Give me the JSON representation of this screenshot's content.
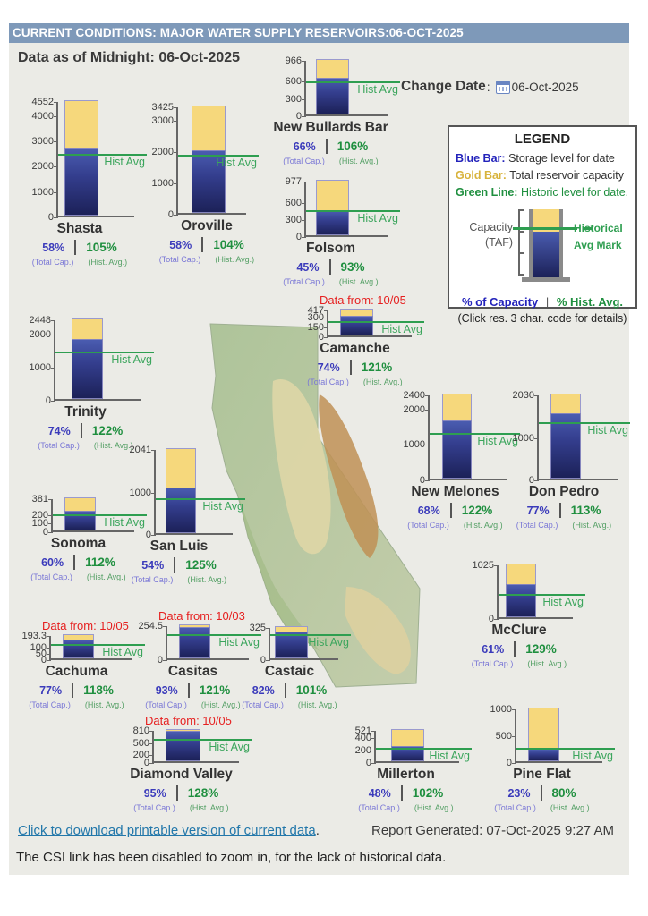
{
  "header": {
    "title": "CURRENT CONDITIONS: MAJOR WATER SUPPLY RESERVOIRS:06-OCT-2025"
  },
  "subtitle": "Data as of Midnight: 06-Oct-2025",
  "change_date": {
    "label": "Change Date",
    "colon": ":",
    "value": "06-Oct-2025"
  },
  "legend": {
    "title": "LEGEND",
    "items": [
      {
        "term": "Blue Bar:",
        "desc": "Storage level for date"
      },
      {
        "term": "Gold Bar:",
        "desc": "Total reservoir capacity"
      },
      {
        "term": "Green Line:",
        "desc": "Historic level for date."
      }
    ],
    "capacity_label_1": "Capacity",
    "capacity_label_2": "(TAF)",
    "hist_mark_1": "Historical",
    "hist_mark_2": "Avg Mark",
    "pct_capacity": "% of Capacity",
    "pct_sep": "|",
    "pct_hist": "% Hist. Avg.",
    "click_note": "(Click res. 3 char. code for details)"
  },
  "chart_data": {
    "type": "bar",
    "unit": "TAF",
    "hist_line_label": "Hist Avg",
    "caption_total": "(Total Cap.)",
    "caption_hist": "(Hist. Avg.)",
    "colors": {
      "storage_bar": "#2e3a8c",
      "capacity_bar": "#f6d87c",
      "hist_line": "#2e9e50",
      "data_note": "#e62020"
    },
    "reservoirs": [
      {
        "name": "Shasta",
        "ticks": [
          "4552",
          "4000",
          "3000",
          "2000",
          "1000",
          "0"
        ],
        "capacity_taf": 4552,
        "pct_of_capacity": 58,
        "pct_hist_avg": 105,
        "storage_taf": 2640,
        "hist_avg_taf": 2514
      },
      {
        "name": "Oroville",
        "ticks": [
          "3425",
          "3000",
          "2000",
          "1000",
          "0"
        ],
        "capacity_taf": 3425,
        "pct_of_capacity": 58,
        "pct_hist_avg": 104,
        "storage_taf": 1987,
        "hist_avg_taf": 1910
      },
      {
        "name": "New Bullards Bar",
        "ticks": [
          "966",
          "600",
          "300",
          "0"
        ],
        "capacity_taf": 966,
        "pct_of_capacity": 66,
        "pct_hist_avg": 106,
        "storage_taf": 638,
        "hist_avg_taf": 602
      },
      {
        "name": "Folsom",
        "ticks": [
          "977",
          "600",
          "300",
          "0"
        ],
        "capacity_taf": 977,
        "pct_of_capacity": 45,
        "pct_hist_avg": 93,
        "storage_taf": 440,
        "hist_avg_taf": 473
      },
      {
        "name": "Camanche",
        "ticks": [
          "417",
          "300",
          "150",
          "0"
        ],
        "capacity_taf": 417,
        "pct_of_capacity": 74,
        "pct_hist_avg": 121,
        "storage_taf": 309,
        "hist_avg_taf": 255,
        "data_note": "Data from: 10/05"
      },
      {
        "name": "Trinity",
        "ticks": [
          "2448",
          "2000",
          "1000",
          "0"
        ],
        "capacity_taf": 2448,
        "pct_of_capacity": 74,
        "pct_hist_avg": 122,
        "storage_taf": 1812,
        "hist_avg_taf": 1485
      },
      {
        "name": "New Melones",
        "ticks": [
          "2400",
          "2000",
          "1000",
          "0"
        ],
        "capacity_taf": 2400,
        "pct_of_capacity": 68,
        "pct_hist_avg": 122,
        "storage_taf": 1632,
        "hist_avg_taf": 1338
      },
      {
        "name": "Don Pedro",
        "ticks": [
          "2030",
          "1000",
          "0"
        ],
        "capacity_taf": 2030,
        "pct_of_capacity": 77,
        "pct_hist_avg": 113,
        "storage_taf": 1563,
        "hist_avg_taf": 1383
      },
      {
        "name": "Sonoma",
        "ticks": [
          "381",
          "200",
          "100",
          "0"
        ],
        "capacity_taf": 381,
        "pct_of_capacity": 60,
        "pct_hist_avg": 112,
        "storage_taf": 229,
        "hist_avg_taf": 204
      },
      {
        "name": "San Luis",
        "ticks": [
          "2041",
          "1000",
          "0"
        ],
        "capacity_taf": 2041,
        "pct_of_capacity": 54,
        "pct_hist_avg": 125,
        "storage_taf": 1102,
        "hist_avg_taf": 882
      },
      {
        "name": "McClure",
        "ticks": [
          "1025",
          "0"
        ],
        "capacity_taf": 1025,
        "pct_of_capacity": 61,
        "pct_hist_avg": 129,
        "storage_taf": 625,
        "hist_avg_taf": 485
      },
      {
        "name": "Cachuma",
        "ticks": [
          "193.3",
          "100",
          "50",
          "0"
        ],
        "capacity_taf": 193.3,
        "pct_of_capacity": 77,
        "pct_hist_avg": 118,
        "storage_taf": 149,
        "hist_avg_taf": 126,
        "data_note": "Data from: 10/05"
      },
      {
        "name": "Casitas",
        "ticks": [
          "254.5",
          "0"
        ],
        "capacity_taf": 254.5,
        "pct_of_capacity": 93,
        "pct_hist_avg": 121,
        "storage_taf": 237,
        "hist_avg_taf": 196,
        "data_note": "Data from: 10/03"
      },
      {
        "name": "Castaic",
        "ticks": [
          "325",
          "0"
        ],
        "capacity_taf": 325,
        "pct_of_capacity": 82,
        "pct_hist_avg": 101,
        "storage_taf": 267,
        "hist_avg_taf": 264
      },
      {
        "name": "Diamond Valley",
        "ticks": [
          "810",
          "500",
          "200",
          "0"
        ],
        "capacity_taf": 810,
        "pct_of_capacity": 95,
        "pct_hist_avg": 128,
        "storage_taf": 770,
        "hist_avg_taf": 601,
        "data_note": "Data from: 10/05"
      },
      {
        "name": "Millerton",
        "ticks": [
          "521",
          "400",
          "200",
          "0"
        ],
        "capacity_taf": 521,
        "pct_of_capacity": 48,
        "pct_hist_avg": 102,
        "storage_taf": 250,
        "hist_avg_taf": 245
      },
      {
        "name": "Pine Flat",
        "ticks": [
          "1000",
          "500",
          "0"
        ],
        "capacity_taf": 1000,
        "pct_of_capacity": 23,
        "pct_hist_avg": 80,
        "storage_taf": 230,
        "hist_avg_taf": 288
      }
    ]
  },
  "footer": {
    "download_link": "Click to download printable version of current data",
    "download_period": ".",
    "report_generated": "Report Generated: 07-Oct-2025 9:27 AM",
    "csi_note": "The CSI link has been disabled to zoom in, for the lack of historical data."
  }
}
